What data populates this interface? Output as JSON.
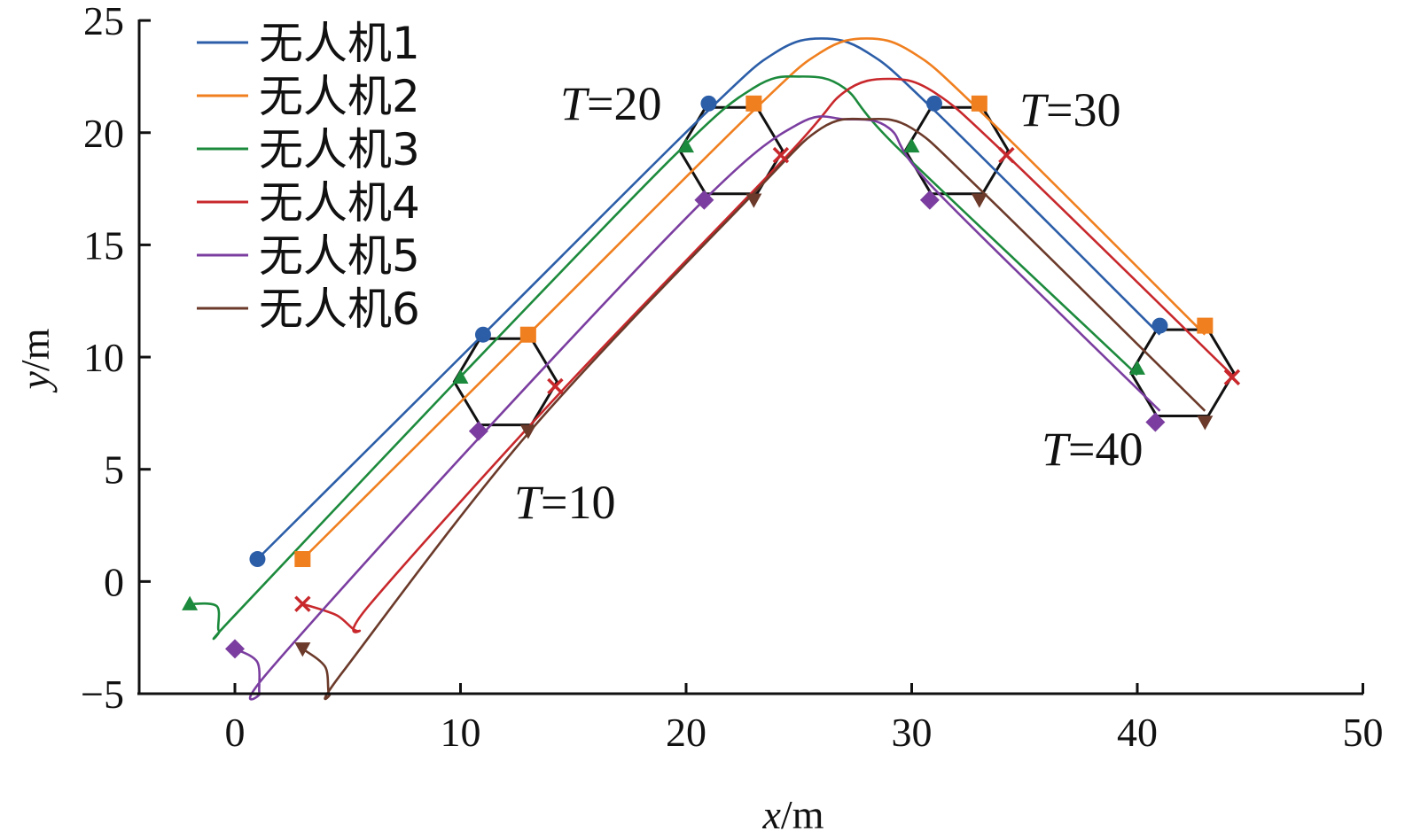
{
  "chart_data": {
    "type": "line",
    "xlabel_var": "x",
    "xlabel_unit": "/m",
    "ylabel_var": "y",
    "ylabel_unit": "/m",
    "xlim": [
      -4,
      50
    ],
    "ylim": [
      -5,
      25
    ],
    "x_ticks": [
      0,
      10,
      20,
      30,
      40,
      50
    ],
    "y_ticks": [
      -5,
      0,
      5,
      10,
      15,
      20,
      25
    ],
    "x_tick_labels": [
      "0",
      "10",
      "20",
      "30",
      "40",
      "50"
    ],
    "y_tick_labels": [
      "−5",
      "0",
      "5",
      "10",
      "15",
      "20",
      "25"
    ],
    "legend_position": "top-left",
    "series": [
      {
        "name": "无人机1",
        "color": "#2c5ea8",
        "marker": "circle",
        "points": [
          [
            1,
            1
          ],
          [
            11,
            11
          ],
          [
            21,
            21
          ],
          [
            24,
            23.6
          ],
          [
            26,
            24.2
          ],
          [
            28,
            23.6
          ],
          [
            31,
            21
          ],
          [
            41,
            11
          ]
        ]
      },
      {
        "name": "无人机2",
        "color": "#f07f1f",
        "marker": "square",
        "points": [
          [
            3,
            1
          ],
          [
            13,
            11
          ],
          [
            23,
            21
          ],
          [
            26,
            23.6
          ],
          [
            28,
            24.2
          ],
          [
            30,
            23.6
          ],
          [
            33,
            21
          ],
          [
            43,
            11
          ]
        ]
      },
      {
        "name": "无人机3",
        "color": "#1c8a3c",
        "marker": "triangle",
        "points": [
          [
            -2,
            -1
          ],
          [
            -0.8,
            -1.1
          ],
          [
            -0.7,
            -2.2
          ],
          [
            0,
            -1.5
          ],
          [
            9.5,
            8.6
          ],
          [
            19.5,
            19
          ],
          [
            23,
            22
          ],
          [
            25,
            22.5
          ],
          [
            27,
            22
          ],
          [
            29.5,
            19.2
          ],
          [
            40,
            9.2
          ]
        ]
      },
      {
        "name": "无人机4",
        "color": "#c8282c",
        "marker": "cross",
        "points": [
          [
            3,
            -1
          ],
          [
            4.5,
            -1.5
          ],
          [
            5.5,
            -2.2
          ],
          [
            6,
            -1
          ],
          [
            14.5,
            8.5
          ],
          [
            24.5,
            19
          ],
          [
            27,
            21.8
          ],
          [
            29,
            22.4
          ],
          [
            31,
            21.8
          ],
          [
            34.2,
            19
          ],
          [
            44.2,
            9.2
          ]
        ]
      },
      {
        "name": "无人机5",
        "color": "#7b3ea0",
        "marker": "diamond",
        "points": [
          [
            0,
            -3
          ],
          [
            1,
            -3.6
          ],
          [
            1.1,
            -5
          ],
          [
            1.5,
            -4
          ],
          [
            11,
            6.6
          ],
          [
            21,
            17.2
          ],
          [
            25,
            20.4
          ],
          [
            27,
            20.6
          ],
          [
            29,
            20.2
          ],
          [
            31,
            17.5
          ],
          [
            41,
            7.6
          ]
        ]
      },
      {
        "name": "无人机6",
        "color": "#6b3a2a",
        "marker": "triangle-down",
        "points": [
          [
            3,
            -3
          ],
          [
            4,
            -3.8
          ],
          [
            4.2,
            -5
          ],
          [
            4.8,
            -4
          ],
          [
            13,
            6.6
          ],
          [
            23,
            17.3
          ],
          [
            26,
            20.2
          ],
          [
            28,
            20.6
          ],
          [
            30,
            20.2
          ],
          [
            33,
            17.5
          ],
          [
            43,
            7.6
          ]
        ]
      }
    ],
    "formation_snapshots": [
      {
        "label": "T=10",
        "center": [
          12,
          8.9
        ]
      },
      {
        "label": "T=20",
        "center": [
          22,
          19.2
        ]
      },
      {
        "label": "T=30",
        "center": [
          32,
          19.2
        ]
      },
      {
        "label": "T=40",
        "center": [
          42,
          9.3
        ]
      }
    ],
    "formation_marker_offsets": [
      [
        -1,
        2.1
      ],
      [
        1,
        2.1
      ],
      [
        -2,
        0.2
      ],
      [
        2.2,
        -0.2
      ],
      [
        -1.2,
        -2.2
      ],
      [
        1,
        -2.2
      ]
    ],
    "annotations": [
      {
        "var": "T",
        "text": "=10"
      },
      {
        "var": "T",
        "text": "=20"
      },
      {
        "var": "T",
        "text": "=30"
      },
      {
        "var": "T",
        "text": "=40"
      }
    ]
  }
}
